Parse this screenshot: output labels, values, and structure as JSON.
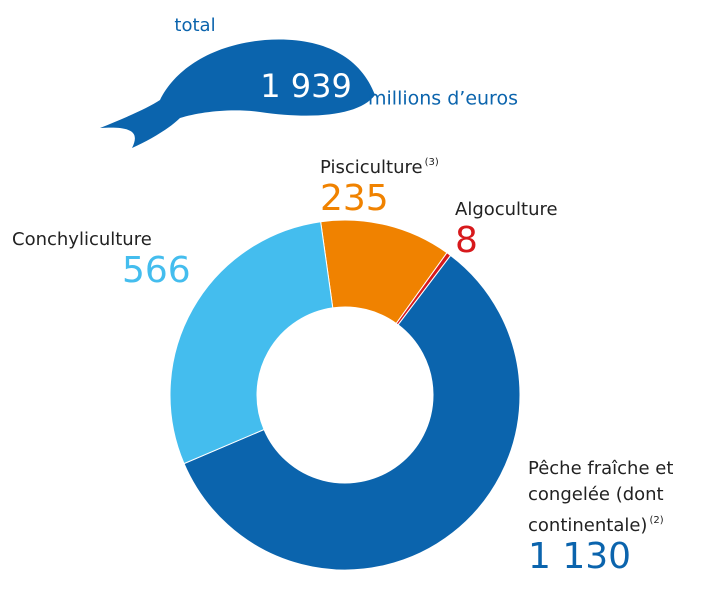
{
  "chart_data": {
    "type": "pie",
    "total_label": "total",
    "total": {
      "value": 1939,
      "label": "1 939"
    },
    "unit": "millions d’euros",
    "categories": [
      "Pisciculture",
      "Algoculture",
      "Pêche fraîche et congelée (dont continentale)",
      "Conchyliculture"
    ],
    "footnotes": [
      "(3)",
      null,
      "(2)",
      null
    ],
    "values": [
      235,
      8,
      1130,
      566
    ],
    "value_labels": [
      "235",
      "8",
      "1 130",
      "566"
    ],
    "colors": [
      "#f08200",
      "#d7191c",
      "#0b64ad",
      "#44bdee"
    ]
  }
}
